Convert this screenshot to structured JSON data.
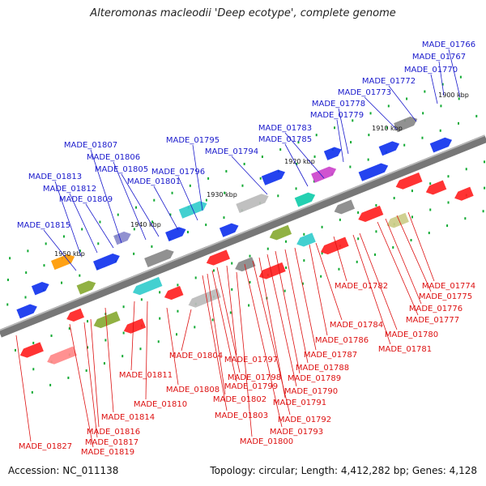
{
  "title": "Alteromonas macleodii 'Deep ecotype', complete genome",
  "footer": {
    "accession": "Accession: NC_011138",
    "topology": "Topology: circular; Length: 4,412,282 bp; Genes: 4,128"
  },
  "colors": {
    "forward_label": "#1a1acc",
    "reverse_label": "#dd1111",
    "backbone": "#777777",
    "dots": "#11aa33"
  },
  "scale_ticks": [
    "1900 kbp",
    "1910 kbp",
    "1920 kbp",
    "1930 kbp",
    "1940 kbp",
    "1950 kbp"
  ],
  "forward_genes": [
    "MADE_01766",
    "MADE_01767",
    "MADE_01770",
    "MADE_01772",
    "MADE_01773",
    "MADE_01778",
    "MADE_01779",
    "MADE_01783",
    "MADE_01785",
    "MADE_01794",
    "MADE_01795",
    "MADE_01796",
    "MADE_01801",
    "MADE_01805",
    "MADE_01806",
    "MADE_01807",
    "MADE_01809",
    "MADE_01812",
    "MADE_01813",
    "MADE_01815"
  ],
  "reverse_genes": [
    "MADE_01774",
    "MADE_01775",
    "MADE_01776",
    "MADE_01777",
    "MADE_01780",
    "MADE_01781",
    "MADE_01782",
    "MADE_01784",
    "MADE_01786",
    "MADE_01787",
    "MADE_01788",
    "MADE_01789",
    "MADE_01790",
    "MADE_01791",
    "MADE_01792",
    "MADE_01793",
    "MADE_01797",
    "MADE_01798",
    "MADE_01799",
    "MADE_01800",
    "MADE_01802",
    "MADE_01803",
    "MADE_01804",
    "MADE_01808",
    "MADE_01810",
    "MADE_01811",
    "MADE_01814",
    "MADE_01816",
    "MADE_01817",
    "MADE_01819",
    "MADE_01827"
  ]
}
